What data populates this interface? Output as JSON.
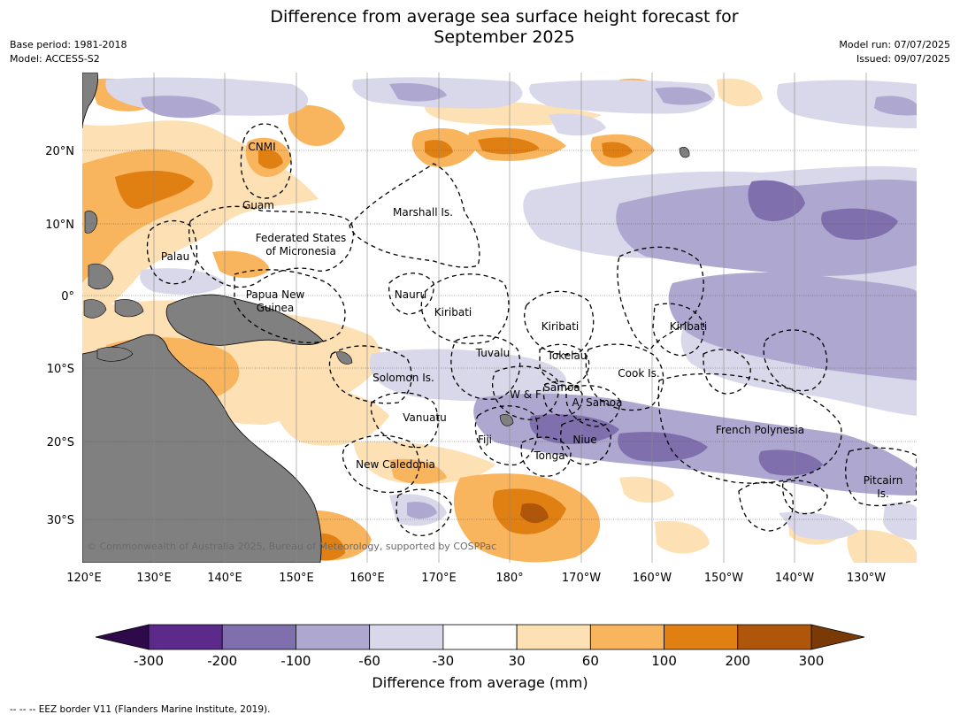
{
  "title_line1": "Difference from average sea surface height forecast for",
  "title_line2": "September 2025",
  "base_period": "Base period: 1981-2018",
  "model": "Model: ACCESS-S2",
  "model_run": "Model run: 07/07/2025",
  "issued": "Issued: 09/07/2025",
  "copyright": "© Commonwealth of Australia 2025, Bureau of Meteorology, supported by COSPPac",
  "footer": "--  --  -- EEZ border V11 (Flanders Marine Institute, 2019).",
  "colorbar": {
    "title": "Difference from average (mm)",
    "ticks": [
      "-300",
      "-200",
      "-100",
      "-60",
      "-30",
      "30",
      "60",
      "100",
      "200",
      "300"
    ],
    "colors": [
      "#5b2a8a",
      "#7f6fad",
      "#aea7d0",
      "#d8d8ea",
      "#ffffff",
      "#fde0b3",
      "#f9b45e",
      "#e07f12",
      "#b0560a"
    ],
    "under_color": "#2f0a4a",
    "over_color": "#7a3a06"
  },
  "axes": {
    "lon_ticks": [
      "120°E",
      "130°E",
      "140°E",
      "150°E",
      "160°E",
      "170°E",
      "180°",
      "170°W",
      "160°W",
      "150°W",
      "140°W",
      "130°W"
    ],
    "lat_ticks": [
      "20°N",
      "10°N",
      "0°",
      "10°S",
      "20°S",
      "30°S"
    ]
  },
  "labels": {
    "cnmi": "CNMI",
    "guam": "Guam",
    "marshall": "Marshall Is.",
    "fsm_1": "Federated States",
    "fsm_2": "of Micronesia",
    "palau": "Palau",
    "nauru": "Nauru",
    "png_1": "Papua New",
    "png_2": "Guinea",
    "kiribati_w": "Kiribati",
    "kiribati_c": "Kiribati",
    "kiribati_e": "Kiribati",
    "tuvalu": "Tuvalu",
    "tokelau": "Tokelau",
    "cook": "Cook Is.",
    "solomon": "Solomon Is.",
    "wf": "W & F",
    "samoa": "Samoa",
    "asamoa": "A. Samoa",
    "vanuatu": "Vanuatu",
    "fiji": "Fiji",
    "niue": "Niue",
    "tonga": "Tonga",
    "french_polynesia": "French Polynesia",
    "new_caledonia": "New Caledonia",
    "pitcairn_1": "Pitcairn",
    "pitcairn_2": "Is."
  }
}
